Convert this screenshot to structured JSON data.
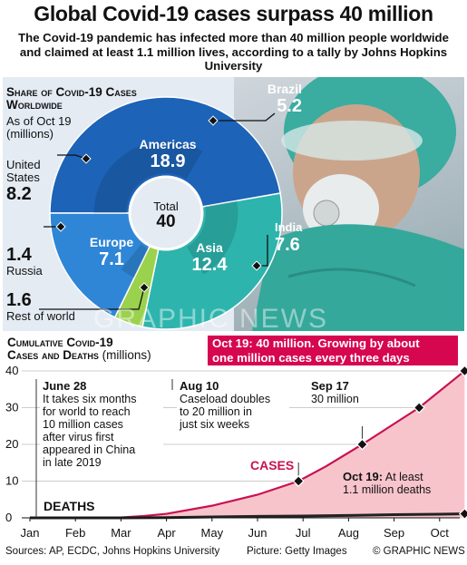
{
  "title": "Global Covid-19 cases surpass 40 million",
  "subtitle": "The Covid-19 pandemic has infected more than 40 million people worldwide and claimed at least 1.1 million lives, according to a tally by Johns Hopkins University",
  "share": {
    "heading_1": "Share of Covid-19 Cases",
    "heading_2": "Worldwide",
    "asof": "As of Oct 19",
    "unit": "(millions)",
    "total_label": "Total",
    "total_value": "40"
  },
  "chart_data": [
    {
      "type": "pie",
      "title": "Share of Covid-19 Cases Worldwide",
      "subtitle": "As of Oct 19 (millions)",
      "slices": [
        {
          "name": "Americas",
          "value": 18.9,
          "color": "#1d63b8"
        },
        {
          "name": "Asia",
          "value": 12.4,
          "color": "#2db4ad"
        },
        {
          "name": "Rest of world",
          "value": 1.6,
          "color": "#9ad24e"
        },
        {
          "name": "Europe",
          "value": 7.1,
          "color": "#2f86d6"
        }
      ],
      "inner_ring": [
        {
          "name": "Brazil",
          "value": 5.2,
          "color": "#1550a0"
        },
        {
          "name": "United States",
          "value": 8.2,
          "color": "#1550a0"
        },
        {
          "name": "India",
          "value": 7.6,
          "color": "#1f9a96"
        },
        {
          "name": "Russia",
          "value": 1.4,
          "color": "#2470c0"
        }
      ],
      "total": 40
    },
    {
      "type": "line",
      "title": "Cumulative Covid-19 Cases and Deaths",
      "ylabel": "(millions)",
      "categories": [
        "Jan",
        "Feb",
        "Mar",
        "Apr",
        "May",
        "Jun",
        "Jul",
        "Aug",
        "Sep",
        "Oct"
      ],
      "ylim": [
        0,
        40
      ],
      "yticks": [
        0,
        10,
        20,
        30,
        40
      ],
      "series": [
        {
          "name": "Cases",
          "color": "#c8124f",
          "fill": "#f7c4cc",
          "x": [
            0,
            1,
            2,
            2.5,
            3,
            4,
            5,
            5.9,
            6.5,
            7.3,
            8.55,
            9.55
          ],
          "values": [
            0,
            0.01,
            0.1,
            0.5,
            1.1,
            3.3,
            6.3,
            10,
            14,
            20,
            30,
            40
          ]
        },
        {
          "name": "Deaths",
          "color": "#222222",
          "x": [
            0,
            2,
            3,
            4,
            5,
            6,
            7,
            8,
            9,
            9.55
          ],
          "values": [
            0,
            0.01,
            0.05,
            0.25,
            0.4,
            0.5,
            0.65,
            0.85,
            1.0,
            1.1
          ]
        }
      ],
      "markers": [
        {
          "x": 5.9,
          "y": 10
        },
        {
          "x": 7.3,
          "y": 20
        },
        {
          "x": 8.55,
          "y": 30
        },
        {
          "x": 9.55,
          "y": 40
        },
        {
          "x": 9.55,
          "y": 1.1
        }
      ]
    }
  ],
  "labels": {
    "brazil_name": "Brazil",
    "brazil_val": "5.2",
    "us_name_1": "United",
    "us_name_2": "States",
    "us_val": "8.2",
    "russia_val": "1.4",
    "russia_name": "Russia",
    "row_val": "1.6",
    "row_name": "Rest of world",
    "americas": "Americas",
    "americas_val": "18.9",
    "europe": "Europe",
    "europe_val": "7.1",
    "asia": "Asia",
    "asia_val": "12.4",
    "india": "India",
    "india_val": "7.6"
  },
  "cumulative": {
    "heading_1": "Cumulative Covid-19",
    "heading_2": "Cases and Deaths",
    "unit": "(millions)",
    "banner_1": "Oct 19: 40 million. Growing by about",
    "banner_2": "one million cases every three days",
    "cases_label": "CASES",
    "deaths_label": "DEATHS",
    "ann_jun_date": "June 28",
    "ann_jun_lines": [
      "It takes six months",
      "for world to reach",
      "10 million cases",
      "after virus first",
      "appeared in China",
      "in late 2019"
    ],
    "ann_aug_date": "Aug 10",
    "ann_aug_lines": [
      "Caseload doubles",
      "to 20 million in",
      "just six weeks"
    ],
    "ann_sep_date": "Sep 17",
    "ann_sep_lines": [
      "30 million"
    ],
    "ann_oct_date": "Oct 19:",
    "ann_oct_first": "At least",
    "ann_oct_lines": [
      "1.1 million deaths"
    ]
  },
  "watermark": "GRAPHIC NEWS",
  "footer": {
    "sources": "Sources: AP, ECDC, Johns Hopkins University",
    "picture": "Picture: Getty Images",
    "credit": "© GRAPHIC NEWS"
  }
}
